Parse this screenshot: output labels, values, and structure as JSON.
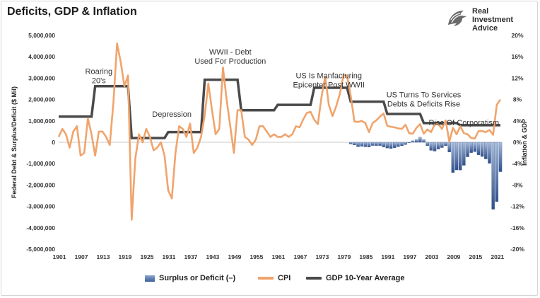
{
  "title": "Deficits, GDP & Inflation",
  "logo": {
    "lines": [
      "Real",
      "Investment",
      "Advice"
    ],
    "icon": "eagle-head-icon"
  },
  "colors": {
    "cpi": "#f0a46c",
    "gdp": "#4a4a4a",
    "deficit_bar_top": "#9ab1d6",
    "deficit_bar_bottom": "#33548f",
    "zero_line": "#c9c9c9"
  },
  "legend": {
    "deficit": "Surplus or Deficit (–)",
    "cpi": "CPI",
    "gdp": "GDP 10-Year Average"
  },
  "chart_data": {
    "type": "line",
    "title": "Deficits, GDP & Inflation",
    "ylabel_left": "Federal Debt & Surplus/Deficit ($ Mil)",
    "ylabel_right": "Inflation & GDP",
    "y_left_ticks": [
      "5,000,000",
      "4,000,000",
      "3,000,000",
      "2,000,000",
      "1,000,000",
      "0",
      "-1,000,000",
      "-2,000,000",
      "-3,000,000",
      "-4,000,000",
      "-5,000,000"
    ],
    "y_right_ticks": [
      "20%",
      "16%",
      "12%",
      "8%",
      "4%",
      "0%",
      "-4%",
      "-8%",
      "-12%",
      "-16%",
      "-20%"
    ],
    "x_ticks": [
      "1901",
      "1907",
      "1913",
      "1919",
      "1925",
      "1931",
      "1937",
      "1943",
      "1949",
      "1955",
      "1961",
      "1967",
      "1973",
      "1979",
      "1985",
      "1991",
      "1997",
      "2003",
      "2009",
      "2015",
      "2021"
    ],
    "ylim_left": [
      -5000000,
      5000000
    ],
    "ylim_right": [
      -20,
      20
    ],
    "xlim": [
      1901,
      2022
    ],
    "grid": false,
    "legend_position": "bottom",
    "annotations": [
      {
        "lines": [
          "Roaring",
          "20's"
        ],
        "x": 1912,
        "y": 3200000
      },
      {
        "lines": [
          "Depression"
        ],
        "x": 1932,
        "y": 1200000
      },
      {
        "lines": [
          "WWII - Debt",
          "Used For Production"
        ],
        "x": 1948,
        "y": 4100000
      },
      {
        "lines": [
          "US Is Manfacturing",
          "Epicenter Post WWII"
        ],
        "x": 1975,
        "y": 3000000
      },
      {
        "lines": [
          "US Turns To Services",
          "Debts & Deficits Rise"
        ],
        "x": 2001,
        "y": 2100000
      },
      {
        "lines": [
          "Rise Of Corporatism"
        ],
        "x": 2012,
        "y": 800000
      }
    ],
    "series": [
      {
        "name": "CPI",
        "axis": "right",
        "x": [
          1901,
          1902,
          1903,
          1904,
          1905,
          1906,
          1907,
          1908,
          1909,
          1910,
          1911,
          1912,
          1913,
          1914,
          1915,
          1916,
          1917,
          1918,
          1919,
          1920,
          1921,
          1922,
          1923,
          1924,
          1925,
          1926,
          1927,
          1928,
          1929,
          1930,
          1931,
          1932,
          1933,
          1934,
          1935,
          1936,
          1937,
          1938,
          1939,
          1940,
          1941,
          1942,
          1943,
          1944,
          1945,
          1946,
          1947,
          1948,
          1949,
          1950,
          1951,
          1952,
          1953,
          1954,
          1955,
          1956,
          1957,
          1958,
          1959,
          1960,
          1961,
          1962,
          1963,
          1964,
          1965,
          1966,
          1967,
          1968,
          1969,
          1970,
          1971,
          1972,
          1973,
          1974,
          1975,
          1976,
          1977,
          1978,
          1979,
          1980,
          1981,
          1982,
          1983,
          1984,
          1985,
          1986,
          1987,
          1988,
          1989,
          1990,
          1991,
          1992,
          1993,
          1994,
          1995,
          1996,
          1997,
          1998,
          1999,
          2000,
          2001,
          2002,
          2003,
          2004,
          2005,
          2006,
          2007,
          2008,
          2009,
          2010,
          2011,
          2012,
          2013,
          2014,
          2015,
          2016,
          2017,
          2018,
          2019,
          2020,
          2021,
          2022
        ],
        "values": [
          1,
          2.5,
          1.5,
          -1,
          2,
          3,
          -2.5,
          -2,
          4.5,
          1.5,
          -2.5,
          2,
          2,
          1,
          -0.5,
          7.5,
          18.5,
          15,
          10.5,
          12.5,
          -14.5,
          -3,
          1.5,
          0,
          2.5,
          1,
          -1.5,
          -1,
          0,
          -2.5,
          -9,
          -10.5,
          -2,
          3,
          2.5,
          1,
          3.5,
          -2,
          -1,
          1,
          5,
          11,
          6,
          1.5,
          2.5,
          14,
          8,
          3,
          -2,
          6,
          6,
          1,
          0.5,
          -0.5,
          0.5,
          3,
          3,
          2,
          1,
          1.5,
          1,
          1,
          1.5,
          1,
          1.5,
          3,
          2.8,
          4.3,
          5.5,
          5.7,
          4.2,
          3.4,
          8.5,
          12.3,
          7,
          4.9,
          6.7,
          9,
          12.5,
          12.5,
          8.7,
          3.9,
          3.8,
          4,
          3.6,
          1.9,
          3.6,
          4.1,
          4.8,
          5.4,
          3.1,
          2.9,
          2.8,
          2.6,
          2.5,
          3.3,
          1.7,
          1.6,
          2.7,
          3.4,
          1.6,
          2.4,
          1.9,
          3.3,
          3.4,
          2.5,
          4.1,
          0.1,
          2.7,
          1.5,
          3,
          1.7,
          1.5,
          0.8,
          0.7,
          2.1,
          2.1,
          1.9,
          2.3,
          1.4,
          7,
          8
        ]
      },
      {
        "name": "GDP 10-Year Average",
        "axis": "right",
        "x": [
          1901,
          1910,
          1911,
          1920,
          1921,
          1930,
          1931,
          1940,
          1941,
          1950,
          1951,
          1960,
          1961,
          1970,
          1971,
          1980,
          1981,
          1990,
          1991,
          2000,
          2001,
          2010,
          2011,
          2022
        ],
        "values": [
          4.8,
          4.8,
          10.5,
          10.5,
          0.8,
          0.8,
          1.9,
          1.9,
          11.7,
          11.7,
          6,
          6,
          7,
          7,
          10.2,
          10.2,
          7.6,
          7.6,
          5.3,
          5.3,
          3.6,
          3.6,
          3.2,
          3.2
        ]
      },
      {
        "name": "Surplus or Deficit (–)",
        "type": "bar",
        "axis": "left",
        "x": [
          1981,
          1982,
          1983,
          1984,
          1985,
          1986,
          1987,
          1988,
          1989,
          1990,
          1991,
          1992,
          1993,
          1994,
          1995,
          1996,
          1997,
          1998,
          1999,
          2000,
          2001,
          2002,
          2003,
          2004,
          2005,
          2006,
          2007,
          2008,
          2009,
          2010,
          2011,
          2012,
          2013,
          2014,
          2015,
          2016,
          2017,
          2018,
          2019,
          2020,
          2021,
          2022
        ],
        "values": [
          -79000,
          -128000,
          -208000,
          -185000,
          -212000,
          -221000,
          -150000,
          -155000,
          -153000,
          -221000,
          -269000,
          -290000,
          -255000,
          -203000,
          -164000,
          -107000,
          -22000,
          69000,
          126000,
          236000,
          128000,
          -158000,
          -378000,
          -413000,
          -318000,
          -248000,
          -161000,
          -459000,
          -1413000,
          -1294000,
          -1300000,
          -1077000,
          -680000,
          -485000,
          -442000,
          -585000,
          -665000,
          -779000,
          -984000,
          -3132000,
          -2775000,
          -1375000
        ]
      }
    ]
  }
}
